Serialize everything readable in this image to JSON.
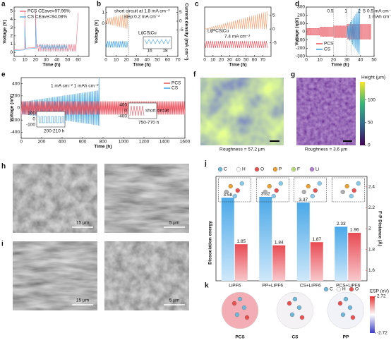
{
  "chart_data": [
    {
      "label": "a",
      "type": "line",
      "xlabel": "Time (h)",
      "ylabel": "Voltage (V)",
      "xlim": [
        0,
        70
      ],
      "xticks": [
        0,
        10,
        20,
        30,
        40,
        50,
        60
      ],
      "ylim": [
        -0.5,
        5.5
      ],
      "yticks": [
        0,
        1,
        2,
        3,
        4,
        5
      ],
      "series": [
        {
          "name": "PCS CEave=97.96%",
          "color": "#e8768c"
        },
        {
          "name": "CS CEave=94.08%",
          "color": "#5aaee0"
        }
      ]
    },
    {
      "label": "b",
      "type": "line",
      "xlabel": "Time (h)",
      "ylabel": "Voltage (V)",
      "y2label": "Current density (mA cm⁻²)",
      "xlim": [
        0,
        70
      ],
      "xticks": [
        0,
        10,
        20,
        30,
        40,
        50,
        60,
        70
      ],
      "ylim": [
        -3,
        1.5
      ],
      "yticks": [
        0,
        1
      ],
      "y2lim": [
        -20,
        8
      ],
      "y2ticks": [
        -5,
        0,
        5
      ],
      "annotations": [
        "short circuit at 1.8 mA cm⁻²",
        "step:0.2 mA cm⁻²",
        "Li|CS|Cu"
      ],
      "inset_xticks": [
        16,
        18
      ]
    },
    {
      "label": "c",
      "type": "line",
      "xlabel": "Time (h)",
      "xlim": [
        0,
        80
      ],
      "xticks": [
        0,
        10,
        20,
        30,
        40,
        50,
        60,
        70
      ],
      "ylim": [
        -1,
        1
      ],
      "yticks": [],
      "y2lim": [
        -10,
        8
      ],
      "y2ticks": [
        -5,
        0,
        5
      ],
      "annotations": [
        "Li|PCS|Cu",
        "7.4 mA cm⁻²"
      ]
    },
    {
      "label": "d",
      "type": "line",
      "xlabel": "Time (h)",
      "ylabel": "Voltage (mV)",
      "xlim": [
        0,
        50
      ],
      "xticks": [
        0,
        10,
        20,
        30,
        40,
        50
      ],
      "ylim": [
        -300,
        300
      ],
      "yticks": [
        -300,
        -200,
        -100,
        0,
        100,
        200,
        300
      ],
      "rate_labels": [
        0.5,
        1,
        2,
        5
      ],
      "annotations": [
        "0.5 mA cm⁻²",
        "1 mAh cm⁻²"
      ],
      "series": [
        {
          "name": "PCS",
          "color": "#e8505b"
        },
        {
          "name": "CS",
          "color": "#3aa0e0"
        }
      ]
    },
    {
      "label": "e",
      "type": "line",
      "xlabel": "Time (h)",
      "ylabel": "Voltage (mV)",
      "xlim": [
        0,
        1600
      ],
      "xticks": [
        0,
        200,
        400,
        600,
        800,
        1000,
        1200,
        1400,
        1600
      ],
      "ylim": [
        -500,
        500
      ],
      "yticks": [
        -400,
        -200,
        0,
        200,
        400
      ],
      "annotations": [
        "1 mA cm⁻² 1 mAh cm⁻²",
        "200-210 h",
        "short circuit",
        "750-770 h"
      ],
      "inset1_yticks": [
        100,
        0,
        -100
      ],
      "inset2_yticks": [
        400,
        0,
        -400
      ],
      "series": [
        {
          "name": "PCS",
          "color": "#e8505b"
        },
        {
          "name": "CS",
          "color": "#3aa0e0"
        }
      ]
    },
    {
      "label": "f",
      "type": "image",
      "caption": "Roughness = 57.2 µm"
    },
    {
      "label": "g",
      "type": "image",
      "caption": "Roughness = 3.6 µm",
      "colorbar_label": "Height (µm)",
      "ylim": [
        0,
        140
      ],
      "yticks": [
        0,
        50,
        100
      ]
    },
    {
      "label": "h",
      "type": "image",
      "scale_bars": [
        "15 µm",
        "5 µm"
      ]
    },
    {
      "label": "i",
      "type": "image",
      "scale_bars": [
        "15 µm",
        "5 µm"
      ]
    },
    {
      "label": "j",
      "type": "bar",
      "ylabel": "Dissociation energy",
      "y2label": "F-P Distance (Å)",
      "atoms": [
        "C",
        "H",
        "O",
        "P",
        "F",
        "Li"
      ],
      "categories": [
        "LiPF6",
        "PP+LiPF6",
        "CS+LiPF6",
        "PCS+LiPF6"
      ],
      "ylim": [
        0,
        4.5
      ],
      "y2lim": [
        1.5,
        2.5
      ],
      "y2ticks": [
        1.6,
        1.8,
        2.0,
        2.2,
        2.4
      ],
      "series": [
        {
          "name": "Dissociation energy",
          "color": "#4aa8e8",
          "values": [
            3.58,
            3.62,
            3.37,
            2.33
          ]
        },
        {
          "name": "F-P Distance",
          "color": "#e84a52",
          "axis": "y2",
          "values": [
            1.85,
            1.84,
            1.87,
            1.96
          ]
        }
      ]
    },
    {
      "label": "k",
      "type": "image",
      "molecules": [
        "PCS",
        "CS",
        "PP"
      ],
      "atoms": [
        "C",
        "H",
        "O"
      ],
      "colorbar_label": "ESP (eV)",
      "ylim": [
        -2.72,
        2.72
      ],
      "yticks": [
        -2.72,
        2.72
      ]
    }
  ]
}
